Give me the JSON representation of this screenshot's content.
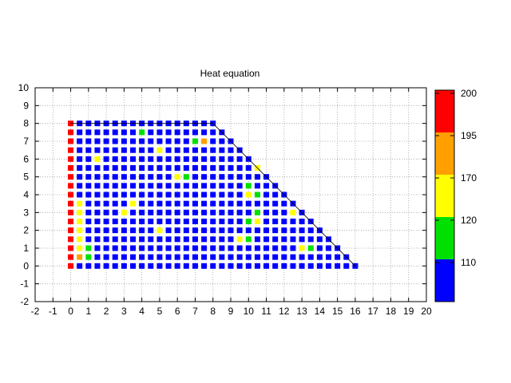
{
  "chart_data": {
    "type": "scatter",
    "title": "Heat equation",
    "xlabel": "",
    "ylabel": "",
    "xlim": [
      -2,
      20
    ],
    "ylim": [
      -2,
      10
    ],
    "xticks": [
      -2,
      -1,
      0,
      1,
      2,
      3,
      4,
      5,
      6,
      7,
      8,
      9,
      10,
      11,
      12,
      13,
      14,
      15,
      16,
      17,
      18,
      19,
      20
    ],
    "yticks": [
      -2,
      -1,
      0,
      1,
      2,
      3,
      4,
      5,
      6,
      7,
      8,
      9,
      10
    ],
    "grid": true,
    "grid_step": 0.5,
    "marker": "square",
    "boundary": {
      "x": [
        0,
        8,
        16,
        16
      ],
      "y": [
        8,
        8,
        0,
        0
      ]
    },
    "colorbar": {
      "labels": [
        "200",
        "195",
        "170",
        "120",
        "110"
      ],
      "bands": [
        {
          "color": "#ff0000"
        },
        {
          "color": "#ffa000"
        },
        {
          "color": "#ffff00"
        },
        {
          "color": "#00e000"
        },
        {
          "color": "#0000ff"
        }
      ]
    },
    "default_color": "#0000ff",
    "left_edge": {
      "x": 0,
      "color": "#ff0000"
    },
    "special_points": [
      {
        "x": 4,
        "y": 7.5,
        "color": "#00e000"
      },
      {
        "x": 7,
        "y": 7,
        "color": "#00e000"
      },
      {
        "x": 7.5,
        "y": 7,
        "color": "#ffa000"
      },
      {
        "x": 1.5,
        "y": 6,
        "color": "#ffff00"
      },
      {
        "x": 5,
        "y": 6.5,
        "color": "#ffff00"
      },
      {
        "x": 10.5,
        "y": 5.5,
        "color": "#ffff00"
      },
      {
        "x": 6,
        "y": 5,
        "color": "#ffff00"
      },
      {
        "x": 6.5,
        "y": 5,
        "color": "#00e000"
      },
      {
        "x": 10,
        "y": 4.5,
        "color": "#00e000"
      },
      {
        "x": 10,
        "y": 4,
        "color": "#ffff00"
      },
      {
        "x": 10.5,
        "y": 4,
        "color": "#00e000"
      },
      {
        "x": 0.5,
        "y": 3.5,
        "color": "#ffff00"
      },
      {
        "x": 3.5,
        "y": 3.5,
        "color": "#ffff00"
      },
      {
        "x": 3,
        "y": 3,
        "color": "#ffff00"
      },
      {
        "x": 0.5,
        "y": 3,
        "color": "#ffff00"
      },
      {
        "x": 10.5,
        "y": 3,
        "color": "#00e000"
      },
      {
        "x": 12.5,
        "y": 3,
        "color": "#ffff00"
      },
      {
        "x": 0.5,
        "y": 2.5,
        "color": "#ffff00"
      },
      {
        "x": 10,
        "y": 2.5,
        "color": "#00e000"
      },
      {
        "x": 10.5,
        "y": 2.5,
        "color": "#ffff00"
      },
      {
        "x": 0.5,
        "y": 2,
        "color": "#ffff00"
      },
      {
        "x": 5,
        "y": 2,
        "color": "#ffff00"
      },
      {
        "x": 0.5,
        "y": 1.5,
        "color": "#ffff00"
      },
      {
        "x": 9.5,
        "y": 1.5,
        "color": "#ffff00"
      },
      {
        "x": 10,
        "y": 1.5,
        "color": "#00e000"
      },
      {
        "x": 0.5,
        "y": 1,
        "color": "#ffff00"
      },
      {
        "x": 1,
        "y": 1,
        "color": "#00e000"
      },
      {
        "x": 13,
        "y": 1,
        "color": "#ffff00"
      },
      {
        "x": 13.5,
        "y": 1,
        "color": "#00e000"
      },
      {
        "x": 0.5,
        "y": 0.5,
        "color": "#ffa000"
      },
      {
        "x": 1,
        "y": 0.5,
        "color": "#00e000"
      }
    ]
  }
}
